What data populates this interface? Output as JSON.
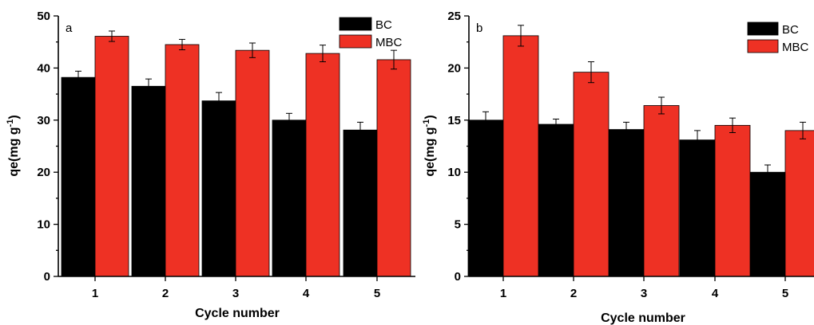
{
  "chart_data": [
    {
      "type": "bar",
      "panel_label": "a",
      "categories": [
        "1",
        "2",
        "3",
        "4",
        "5"
      ],
      "series": [
        {
          "name": "BC",
          "color": "#000000",
          "values": [
            38.2,
            36.5,
            33.7,
            30.0,
            28.1
          ],
          "errors": [
            1.2,
            1.4,
            1.6,
            1.3,
            1.5
          ]
        },
        {
          "name": "MBC",
          "color": "#ee3124",
          "values": [
            46.1,
            44.5,
            43.4,
            42.8,
            41.6
          ],
          "errors": [
            1.0,
            1.0,
            1.4,
            1.6,
            1.8
          ]
        }
      ],
      "xlabel": "Cycle number",
      "ylabel": "qe(mg g-1)",
      "ylim": [
        0,
        50
      ],
      "yticks": [
        0,
        10,
        20,
        30,
        40,
        50
      ],
      "legend": "top-right",
      "grid": false
    },
    {
      "type": "bar",
      "panel_label": "b",
      "categories": [
        "1",
        "2",
        "3",
        "4",
        "5"
      ],
      "series": [
        {
          "name": "BC",
          "color": "#000000",
          "values": [
            15.0,
            14.6,
            14.1,
            13.1,
            10.0
          ],
          "errors": [
            0.8,
            0.5,
            0.7,
            0.9,
            0.7
          ]
        },
        {
          "name": "MBC",
          "color": "#ee3124",
          "values": [
            23.1,
            19.6,
            16.4,
            14.5,
            14.0
          ],
          "errors": [
            1.0,
            1.0,
            0.8,
            0.7,
            0.8
          ]
        }
      ],
      "xlabel": "Cycle number",
      "ylabel": "qe(mg g-1)",
      "ylim": [
        0,
        25
      ],
      "yticks": [
        0,
        5,
        10,
        15,
        20,
        25
      ],
      "legend": "top-right",
      "grid": false
    }
  ]
}
